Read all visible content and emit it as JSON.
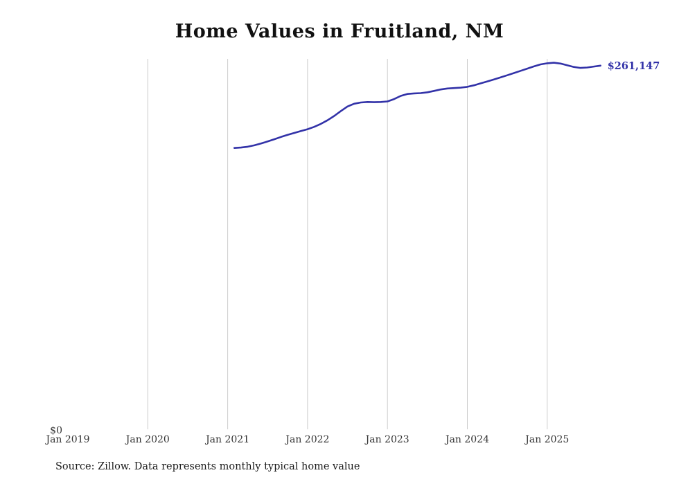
{
  "title": "Home Values in Fruitland, NM",
  "source_note": "Source: Zillow. Data represents monthly typical home value",
  "chart_data": {
    "type": "line",
    "title": "Home Values in Fruitland, NM",
    "xlabel": "",
    "ylabel": "",
    "ylim": [
      0,
      266000
    ],
    "grid": "vertical-only",
    "legend": "none",
    "line_color": "#3232A8",
    "grid_color": "#CCCCCC",
    "y_zero_label": "$0",
    "end_label": "$261,147",
    "end_value": 261147,
    "start_month": 25,
    "x_ticks": [
      {
        "label": "Jan 2019",
        "month": 0,
        "gridline": false
      },
      {
        "label": "Jan 2020",
        "month": 12,
        "gridline": true
      },
      {
        "label": "Jan 2021",
        "month": 24,
        "gridline": true
      },
      {
        "label": "Jan 2022",
        "month": 36,
        "gridline": true
      },
      {
        "label": "Jan 2023",
        "month": 48,
        "gridline": true
      },
      {
        "label": "Jan 2024",
        "month": 60,
        "gridline": true
      },
      {
        "label": "Jan 2025",
        "month": 72,
        "gridline": true
      }
    ],
    "series": [
      {
        "name": "Typical home value",
        "x_start": "2021-02",
        "values": [
          202000,
          202300,
          202900,
          203900,
          205200,
          206700,
          208300,
          209900,
          211400,
          212800,
          214200,
          215500,
          217200,
          219300,
          221900,
          225000,
          228500,
          231800,
          233800,
          234700,
          235000,
          234900,
          235000,
          235400,
          237100,
          239400,
          240800,
          241200,
          241400,
          242000,
          243000,
          244000,
          244700,
          245000,
          245300,
          245900,
          247000,
          248400,
          249800,
          251200,
          252700,
          254200,
          255800,
          257400,
          259000,
          260600,
          262000,
          262800,
          263200,
          262600,
          261400,
          260200,
          259500,
          259800,
          260500,
          261147
        ]
      }
    ]
  }
}
